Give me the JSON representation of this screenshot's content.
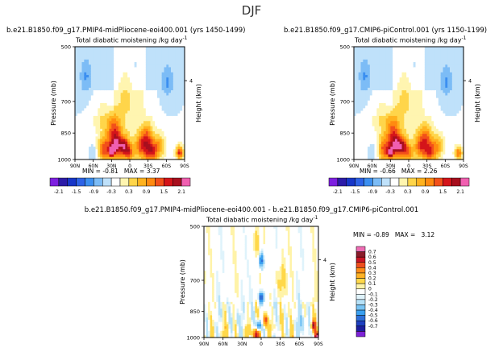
{
  "page_title": "DJF",
  "chart_data": [
    {
      "type": "heatmap",
      "case": "b.e21.B1850.f09_g17.PMIP4-midPliocene-eoi400.001  (yrs 1450-1499)",
      "title": "Total diabatic moistening",
      "units": "/kg day",
      "units_exp": "-1",
      "ylabel": "Pressure (mb)",
      "y2label": "Height (km)",
      "y_ticks": [
        "500",
        "700",
        "850",
        "1000"
      ],
      "y2_ticks": [
        "4"
      ],
      "x_ticks": [
        "90N",
        "60N",
        "30N",
        "0",
        "30S",
        "60S",
        "90S"
      ],
      "stats": {
        "min_label": "MIN = ",
        "min": "-0.81",
        "max_label": "MAX = ",
        "max": "3.37"
      },
      "colorbar": [
        "-2.1",
        "-1.5",
        "-0.9",
        "-0.3",
        "0.3",
        "0.9",
        "1.5",
        "2.1"
      ],
      "blobs": [
        {
          "lat": 0,
          "p": 960,
          "r": 7,
          "v": 1.0
        },
        {
          "lat": 8,
          "p": 925,
          "r": 8,
          "v": 1.6
        },
        {
          "lat": 22,
          "p": 920,
          "r": 10,
          "v": 1.8
        },
        {
          "lat": 30,
          "p": 950,
          "r": 4,
          "v": 3.3
        },
        {
          "lat": 42,
          "p": 940,
          "r": 10,
          "v": 1.4
        },
        {
          "lat": 26,
          "p": 830,
          "r": 12,
          "v": 1.2
        },
        {
          "lat": 45,
          "p": 760,
          "r": 12,
          "v": 0.3
        },
        {
          "lat": -20,
          "p": 920,
          "r": 10,
          "v": 1.3
        },
        {
          "lat": -28,
          "p": 860,
          "r": 9,
          "v": 0.9
        },
        {
          "lat": -35,
          "p": 950,
          "r": 10,
          "v": 1.6
        },
        {
          "lat": -48,
          "p": 920,
          "r": 8,
          "v": 0.8
        },
        {
          "lat": -82,
          "p": 960,
          "r": 5,
          "v": 1.6
        },
        {
          "lat": 72,
          "p": 600,
          "r": 8,
          "v": -0.5
        },
        {
          "lat": -62,
          "p": 620,
          "r": 8,
          "v": -0.5
        },
        {
          "lat": -10,
          "p": 560,
          "r": 10,
          "v": -0.2
        },
        {
          "lat": 58,
          "p": 960,
          "r": 12,
          "v": -0.3
        },
        {
          "lat": 8,
          "p": 700,
          "r": 10,
          "v": 0.25
        }
      ]
    },
    {
      "type": "heatmap",
      "case": "b.e21.B1850.f09_g17.CMIP6-piControl.001  (yrs 1150-1199)",
      "title": "Total diabatic moistening",
      "units": "/kg day",
      "units_exp": "-1",
      "ylabel": "Pressure (mb)",
      "y2label": "Height (km)",
      "y_ticks": [
        "500",
        "700",
        "850",
        "1000"
      ],
      "y2_ticks": [
        "4"
      ],
      "x_ticks": [
        "90N",
        "60N",
        "30N",
        "0",
        "30S",
        "60S",
        "90S"
      ],
      "stats": {
        "min_label": "MIN = ",
        "min": "-0.66",
        "max_label": "MAX = ",
        "max": "2.26"
      },
      "colorbar": [
        "-2.1",
        "-1.5",
        "-0.9",
        "-0.3",
        "0.3",
        "0.9",
        "1.5",
        "2.1"
      ],
      "blobs": [
        {
          "lat": 0,
          "p": 960,
          "r": 7,
          "v": 0.9
        },
        {
          "lat": 10,
          "p": 925,
          "r": 8,
          "v": 1.5
        },
        {
          "lat": 22,
          "p": 920,
          "r": 10,
          "v": 1.7
        },
        {
          "lat": 30,
          "p": 960,
          "r": 4,
          "v": 2.2
        },
        {
          "lat": 40,
          "p": 940,
          "r": 10,
          "v": 1.3
        },
        {
          "lat": 26,
          "p": 830,
          "r": 12,
          "v": 1.1
        },
        {
          "lat": 45,
          "p": 760,
          "r": 12,
          "v": 0.3
        },
        {
          "lat": -20,
          "p": 920,
          "r": 10,
          "v": 1.2
        },
        {
          "lat": -28,
          "p": 860,
          "r": 9,
          "v": 0.8
        },
        {
          "lat": -35,
          "p": 950,
          "r": 10,
          "v": 1.4
        },
        {
          "lat": -48,
          "p": 920,
          "r": 8,
          "v": 0.7
        },
        {
          "lat": -82,
          "p": 960,
          "r": 5,
          "v": 1.2
        },
        {
          "lat": 72,
          "p": 600,
          "r": 8,
          "v": -0.5
        },
        {
          "lat": -62,
          "p": 620,
          "r": 8,
          "v": -0.5
        },
        {
          "lat": -10,
          "p": 560,
          "r": 10,
          "v": -0.2
        },
        {
          "lat": 58,
          "p": 960,
          "r": 12,
          "v": -0.3
        },
        {
          "lat": 8,
          "p": 700,
          "r": 10,
          "v": 0.25
        }
      ]
    },
    {
      "type": "heatmap",
      "case": "b.e21.B1850.f09_g17.PMIP4-midPliocene-eoi400.001  -  b.e21.B1850.f09_g17.CMIP6-piControl.001",
      "title": "Total diabatic moistening",
      "units": "/kg day",
      "units_exp": "-1",
      "ylabel": "Pressure (mb)",
      "y2label": "Height (km)",
      "y_ticks": [
        "500",
        "700",
        "850",
        "1000"
      ],
      "y2_ticks": [
        "4"
      ],
      "x_ticks": [
        "90N",
        "60N",
        "30N",
        "0",
        "30S",
        "60S",
        "90S"
      ],
      "stats": {
        "min_label": "MIN = ",
        "min": "-0.89",
        "max_label": "MAX =",
        "max": "3.12"
      },
      "colorbar": [
        "0.7",
        "0.6",
        "0.5",
        "0.4",
        "0.3",
        "0.2",
        "0.1",
        "0",
        "-0.1",
        "-0.2",
        "-0.3",
        "-0.4",
        "-0.5",
        "-0.6",
        "-0.7"
      ],
      "blobs": [
        {
          "lat": 0,
          "p": 620,
          "r": 4,
          "v": -0.5
        },
        {
          "lat": 0,
          "p": 780,
          "r": 4,
          "v": -0.6
        },
        {
          "lat": 4,
          "p": 930,
          "r": 4,
          "v": -0.7
        },
        {
          "lat": -6,
          "p": 900,
          "r": 4,
          "v": 0.5
        },
        {
          "lat": 8,
          "p": 980,
          "r": 5,
          "v": 0.6
        },
        {
          "lat": 20,
          "p": 960,
          "r": 6,
          "v": 0.2
        },
        {
          "lat": -18,
          "p": 940,
          "r": 6,
          "v": 0.15
        },
        {
          "lat": -65,
          "p": 920,
          "r": 8,
          "v": -0.15
        },
        {
          "lat": -82,
          "p": 930,
          "r": 4,
          "v": 0.5
        },
        {
          "lat": -88,
          "p": 990,
          "r": 3,
          "v": 0.7
        },
        {
          "lat": 40,
          "p": 900,
          "r": 10,
          "v": -0.12
        },
        {
          "lat": 55,
          "p": 960,
          "r": 8,
          "v": 0.15
        },
        {
          "lat": 10,
          "p": 560,
          "r": 8,
          "v": 0.1
        },
        {
          "lat": -30,
          "p": 700,
          "r": 10,
          "v": 0.12
        }
      ]
    }
  ]
}
